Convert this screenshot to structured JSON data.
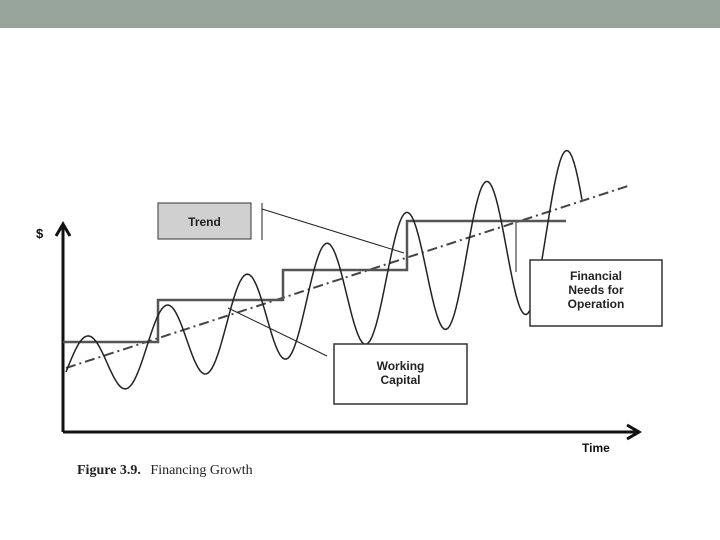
{
  "header_color": "#96a49a",
  "diagram": {
    "y_axis_label": "$",
    "x_axis_label": "Time",
    "labels": {
      "trend": "Trend",
      "working_capital": [
        "Working",
        "Capital"
      ],
      "financial_needs": [
        "Financial",
        "Needs for",
        "Operation"
      ]
    }
  },
  "caption": {
    "figure_number": "Figure 3.9.",
    "title": "Financing Growth"
  }
}
